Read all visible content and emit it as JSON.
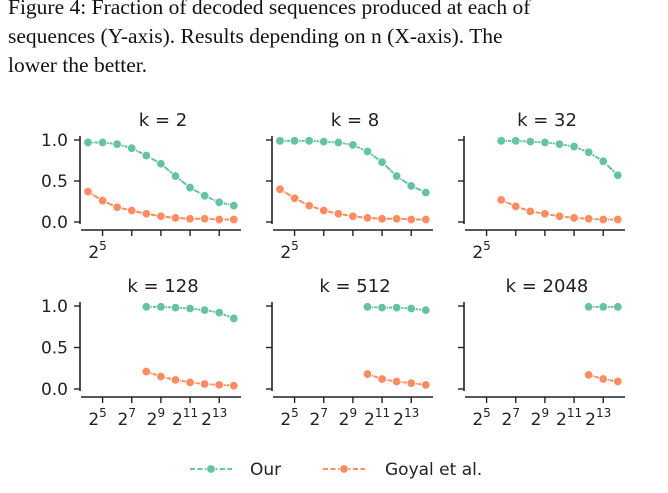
{
  "caption": {
    "line1": "Figure 4: Fraction of decoded sequences produced at each of",
    "line2": "sequences (Y-axis). Results depending on n (X-axis). The",
    "line3": "lower the better."
  },
  "legend": [
    {
      "name": "Our",
      "color": "#66c2a5"
    },
    {
      "name": "Goyal et al.",
      "color": "#fc8d62"
    }
  ],
  "chart_data": {
    "type": "line",
    "x_scale": "log2",
    "xlim": [
      16,
      20000
    ],
    "ylim": [
      0,
      1
    ],
    "x_ticks": [
      "2^5",
      "2^7",
      "2^9",
      "2^11",
      "2^13"
    ],
    "y_ticks": [
      "0.0",
      "0.5",
      "1.0"
    ],
    "panels": [
      {
        "title": "k = 2",
        "series": [
          {
            "name": "Our",
            "x": [
              16,
              32,
              64,
              128,
              256,
              512,
              1024,
              2048,
              4096,
              8192,
              16384
            ],
            "y": [
              0.97,
              0.97,
              0.95,
              0.9,
              0.81,
              0.71,
              0.56,
              0.42,
              0.32,
              0.24,
              0.2
            ]
          },
          {
            "name": "Goyal et al.",
            "x": [
              16,
              32,
              64,
              128,
              256,
              512,
              1024,
              2048,
              4096,
              8192,
              16384
            ],
            "y": [
              0.37,
              0.26,
              0.18,
              0.14,
              0.1,
              0.07,
              0.05,
              0.04,
              0.04,
              0.03,
              0.03
            ]
          }
        ]
      },
      {
        "title": "k = 8",
        "series": [
          {
            "name": "Our",
            "x": [
              16,
              32,
              64,
              128,
              256,
              512,
              1024,
              2048,
              4096,
              8192,
              16384
            ],
            "y": [
              0.99,
              0.99,
              0.99,
              0.98,
              0.97,
              0.94,
              0.86,
              0.73,
              0.56,
              0.44,
              0.36
            ]
          },
          {
            "name": "Goyal et al.",
            "x": [
              16,
              32,
              64,
              128,
              256,
              512,
              1024,
              2048,
              4096,
              8192,
              16384
            ],
            "y": [
              0.4,
              0.29,
              0.2,
              0.14,
              0.1,
              0.07,
              0.05,
              0.04,
              0.04,
              0.03,
              0.03
            ]
          }
        ]
      },
      {
        "title": "k = 32",
        "series": [
          {
            "name": "Our",
            "x": [
              64,
              128,
              256,
              512,
              1024,
              2048,
              4096,
              8192,
              16384
            ],
            "y": [
              0.99,
              0.99,
              0.98,
              0.97,
              0.95,
              0.92,
              0.85,
              0.74,
              0.57
            ]
          },
          {
            "name": "Goyal et al.",
            "x": [
              64,
              128,
              256,
              512,
              1024,
              2048,
              4096,
              8192,
              16384
            ],
            "y": [
              0.27,
              0.19,
              0.13,
              0.1,
              0.07,
              0.05,
              0.04,
              0.03,
              0.03
            ]
          }
        ]
      },
      {
        "title": "k = 128",
        "series": [
          {
            "name": "Our",
            "x": [
              256,
              512,
              1024,
              2048,
              4096,
              8192,
              16384
            ],
            "y": [
              0.99,
              0.99,
              0.98,
              0.97,
              0.95,
              0.92,
              0.85
            ]
          },
          {
            "name": "Goyal et al.",
            "x": [
              256,
              512,
              1024,
              2048,
              4096,
              8192,
              16384
            ],
            "y": [
              0.21,
              0.15,
              0.11,
              0.08,
              0.06,
              0.05,
              0.04
            ]
          }
        ]
      },
      {
        "title": "k = 512",
        "series": [
          {
            "name": "Our",
            "x": [
              1024,
              2048,
              4096,
              8192,
              16384
            ],
            "y": [
              0.99,
              0.98,
              0.98,
              0.97,
              0.95
            ]
          },
          {
            "name": "Goyal et al.",
            "x": [
              1024,
              2048,
              4096,
              8192,
              16384
            ],
            "y": [
              0.18,
              0.12,
              0.09,
              0.07,
              0.05
            ]
          }
        ]
      },
      {
        "title": "k = 2048",
        "series": [
          {
            "name": "Our",
            "x": [
              4096,
              8192,
              16384
            ],
            "y": [
              0.99,
              0.99,
              0.99
            ]
          },
          {
            "name": "Goyal et al.",
            "x": [
              4096,
              8192,
              16384
            ],
            "y": [
              0.17,
              0.12,
              0.09
            ]
          }
        ]
      }
    ]
  }
}
